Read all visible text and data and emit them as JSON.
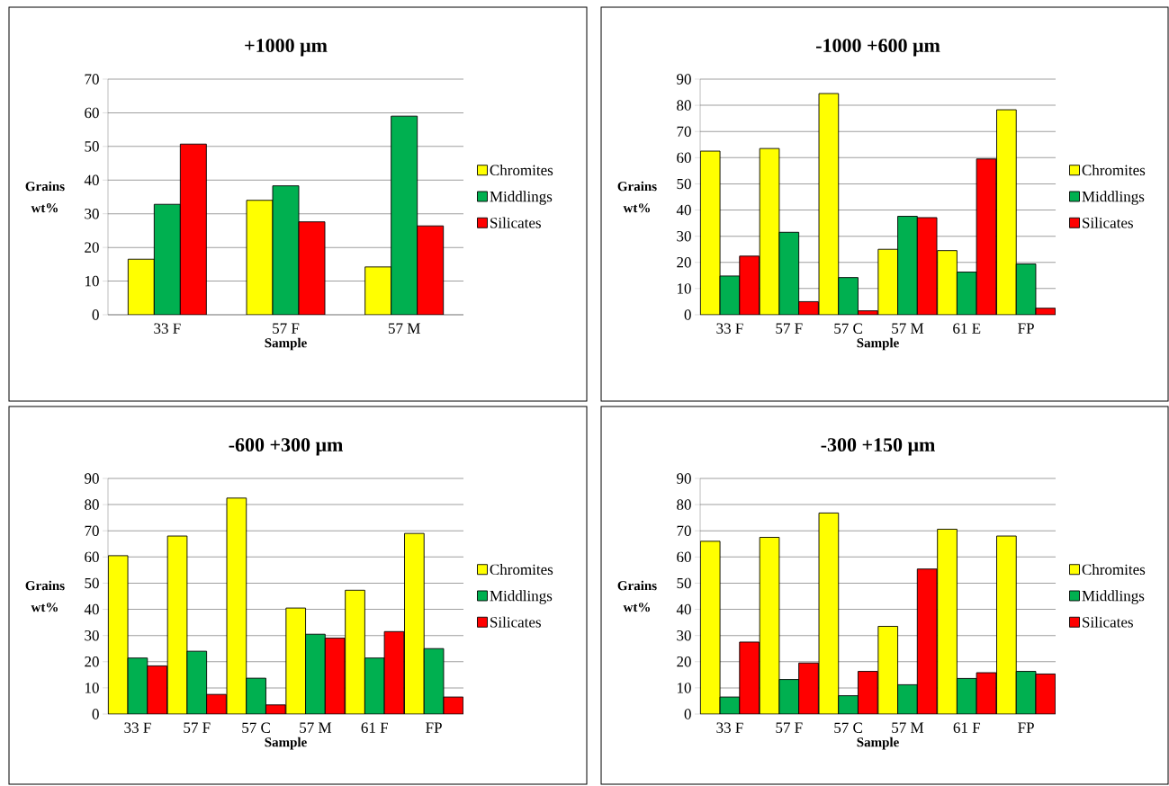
{
  "chart_data": [
    {
      "type": "bar",
      "title": "+1000 μm",
      "xlabel": "Sample",
      "ylabel": "Grains wt%",
      "categories": [
        "33 F",
        "57 F",
        "57 M"
      ],
      "ylim": [
        0,
        70
      ],
      "yticks": [
        0,
        10,
        20,
        30,
        40,
        50,
        60,
        70
      ],
      "grid": "y",
      "legend": "right",
      "series": [
        {
          "name": "Chromites",
          "color": "#ffff00",
          "values": [
            16.5,
            34,
            14.2
          ]
        },
        {
          "name": "Middlings",
          "color": "#00b050",
          "values": [
            32.8,
            38.3,
            59
          ]
        },
        {
          "name": "Silicates",
          "color": "#ff0000",
          "values": [
            50.7,
            27.6,
            26.4
          ]
        }
      ]
    },
    {
      "type": "bar",
      "title": "-1000 +600 μm",
      "xlabel": "Sample",
      "ylabel": "Grains wt%",
      "categories": [
        "33 F",
        "57 F",
        "57 C",
        "57 M",
        "61 E",
        "FP"
      ],
      "ylim": [
        0,
        90
      ],
      "yticks": [
        0,
        10,
        20,
        30,
        40,
        50,
        60,
        70,
        80,
        90
      ],
      "grid": "y",
      "legend": "right",
      "series": [
        {
          "name": "Chromites",
          "color": "#ffff00",
          "values": [
            62.5,
            63.5,
            84.5,
            25,
            24.5,
            78.3
          ]
        },
        {
          "name": "Middlings",
          "color": "#00b050",
          "values": [
            14.8,
            31.5,
            14.2,
            37.6,
            16.3,
            19.4
          ]
        },
        {
          "name": "Silicates",
          "color": "#ff0000",
          "values": [
            22.4,
            5,
            1.5,
            37.1,
            59.5,
            2.5
          ]
        }
      ]
    },
    {
      "type": "bar",
      "title": "-600 +300 μm",
      "xlabel": "Sample",
      "ylabel": "Grains wt%",
      "categories": [
        "33 F",
        "57 F",
        "57 C",
        "57 M",
        "61 F",
        "FP"
      ],
      "ylim": [
        0,
        90
      ],
      "yticks": [
        0,
        10,
        20,
        30,
        40,
        50,
        60,
        70,
        80,
        90
      ],
      "grid": "y",
      "legend": "right",
      "series": [
        {
          "name": "Chromites",
          "color": "#ffff00",
          "values": [
            60.5,
            68,
            82.5,
            40.5,
            47.3,
            69
          ]
        },
        {
          "name": "Middlings",
          "color": "#00b050",
          "values": [
            21.4,
            24,
            13.7,
            30.5,
            21.4,
            25
          ]
        },
        {
          "name": "Silicates",
          "color": "#ff0000",
          "values": [
            18.4,
            7.5,
            3.5,
            29,
            31.5,
            6.5
          ]
        }
      ]
    },
    {
      "type": "bar",
      "title": "-300 +150 μm",
      "xlabel": "Sample",
      "ylabel": "Grains wt%",
      "categories": [
        "33 F",
        "57 F",
        "57 C",
        "57 M",
        "61 F",
        "FP"
      ],
      "ylim": [
        0,
        90
      ],
      "yticks": [
        0,
        10,
        20,
        30,
        40,
        50,
        60,
        70,
        80,
        90
      ],
      "grid": "y",
      "legend": "right",
      "series": [
        {
          "name": "Chromites",
          "color": "#ffff00",
          "values": [
            66,
            67.5,
            76.8,
            33.5,
            70.6,
            68
          ]
        },
        {
          "name": "Middlings",
          "color": "#00b050",
          "values": [
            6.5,
            13.2,
            7,
            11.2,
            13.6,
            16.3
          ]
        },
        {
          "name": "Silicates",
          "color": "#ff0000",
          "values": [
            27.5,
            19.5,
            16.3,
            55.4,
            15.8,
            15.3
          ]
        }
      ]
    }
  ]
}
